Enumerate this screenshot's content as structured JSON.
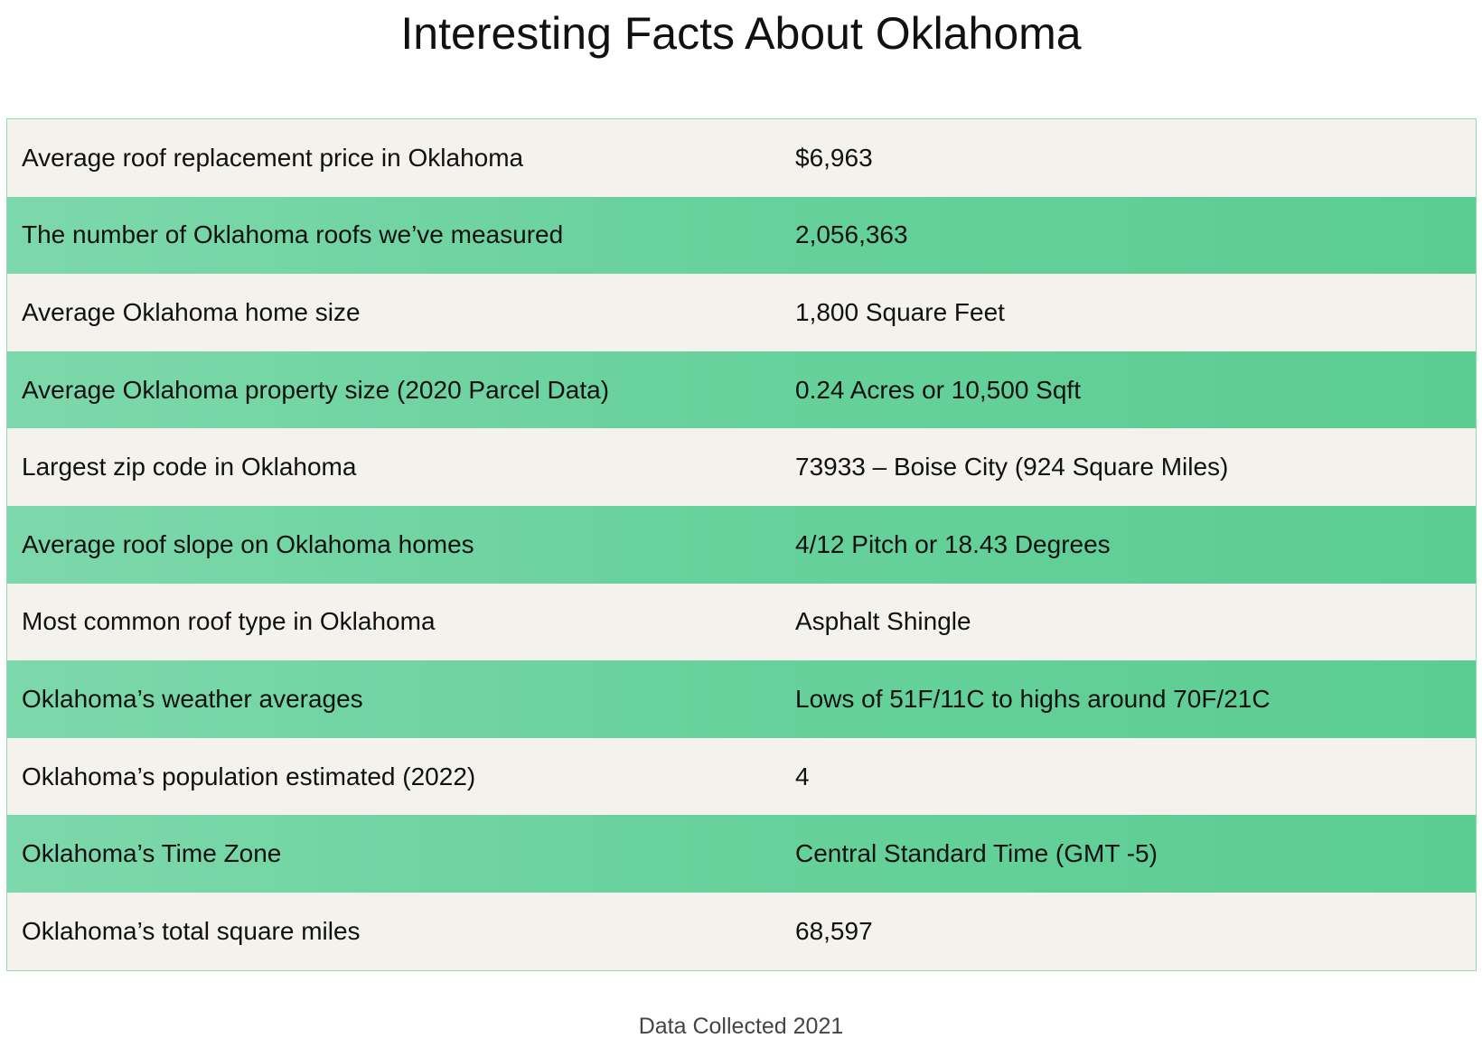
{
  "title": "Interesting Facts About Oklahoma",
  "colors": {
    "row_light": "#f4f2ec",
    "row_green_start": "#7dd8ab",
    "row_green_end": "#5bcd92",
    "border": "#8fdcb4"
  },
  "facts": [
    {
      "label": "Average roof replacement price in Oklahoma",
      "value": "$6,963"
    },
    {
      "label": "The number of Oklahoma roofs we’ve measured",
      "value": "2,056,363"
    },
    {
      "label": "Average Oklahoma home size",
      "value": "1,800 Square Feet"
    },
    {
      "label": "Average Oklahoma property size (2020 Parcel Data)",
      "value": "0.24 Acres or 10,500 Sqft"
    },
    {
      "label": "Largest zip code in Oklahoma",
      "value": "73933 – Boise City (924 Square Miles)"
    },
    {
      "label": "Average roof slope on Oklahoma homes",
      "value": "4/12 Pitch or 18.43 Degrees"
    },
    {
      "label": "Most common roof type in Oklahoma",
      "value": "Asphalt Shingle"
    },
    {
      "label": "Oklahoma’s weather averages",
      "value": "Lows of 51F/11C to highs around 70F/21C"
    },
    {
      "label": "Oklahoma’s population estimated (2022)",
      "value": "4"
    },
    {
      "label": "Oklahoma’s Time Zone",
      "value": "Central Standard Time (GMT -5)"
    },
    {
      "label": "Oklahoma’s total square miles",
      "value": "68,597"
    }
  ],
  "footnote": "Data Collected 2021"
}
